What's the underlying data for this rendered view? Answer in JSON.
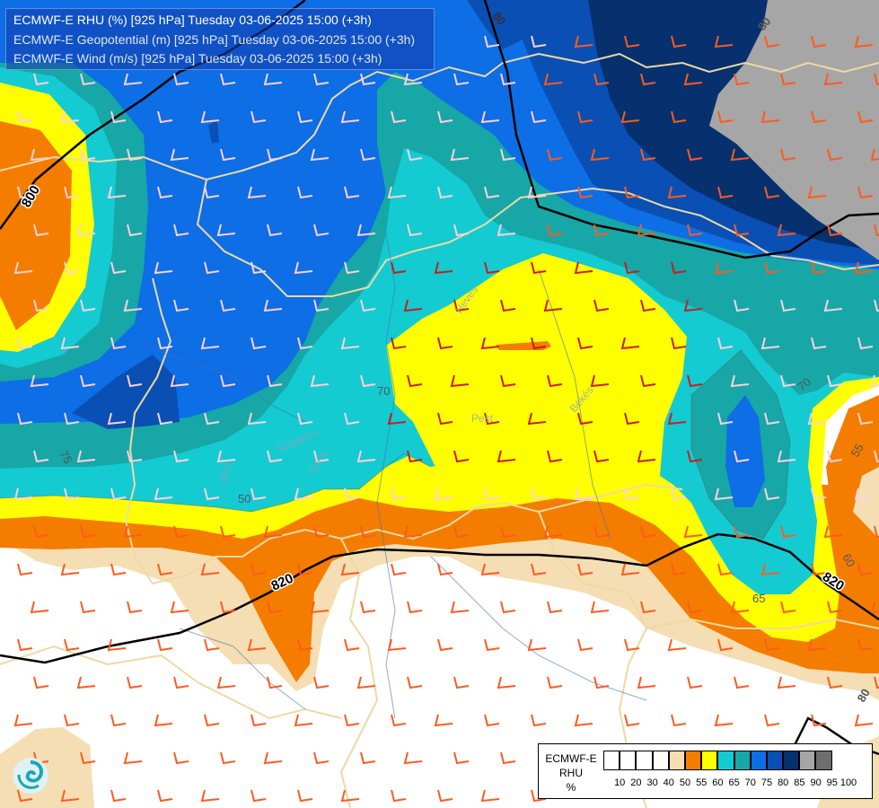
{
  "header": {
    "line1": "ECMWF-E RHU (%) [925 hPa] Tuesday 03-06-2025 15:00 (+3h)",
    "line2": "ECMWF-E Geopotential (m) [925 hPa] Tuesday 03-06-2025 15:00 (+3h)",
    "line3": "ECMWF-E Wind (m/s) [925 hPa] Tuesday 03-06-2025 15:00 (+3h)"
  },
  "geopotential_labels": [
    "800",
    "820",
    "820",
    "80",
    "80",
    "80"
  ],
  "rhu_labels": [
    "70",
    "65",
    "55",
    "60",
    "75",
    "50",
    "70"
  ],
  "place_labels": [
    "Heves",
    "Pest",
    "Békés",
    "Jász",
    "Szabolcs",
    "Tolna"
  ],
  "legend": {
    "source": "ECMWF-E",
    "variable": "RHU",
    "unit": "%",
    "levels": [
      "10",
      "20",
      "30",
      "40",
      "50",
      "55",
      "60",
      "65",
      "70",
      "75",
      "80",
      "85",
      "90",
      "95",
      "100"
    ],
    "colors": [
      "#ffffff",
      "#ffffff",
      "#ffffff",
      "#ffffff",
      "#f5deb3",
      "#f47d00",
      "#ffff00",
      "#14cbd2",
      "#17a7a7",
      "#0d6ee6",
      "#0a4fb4",
      "#06306e",
      "#a6a6a6",
      "#6e6e6e"
    ]
  },
  "icons": {
    "logo": "swirl-logo-icon"
  }
}
